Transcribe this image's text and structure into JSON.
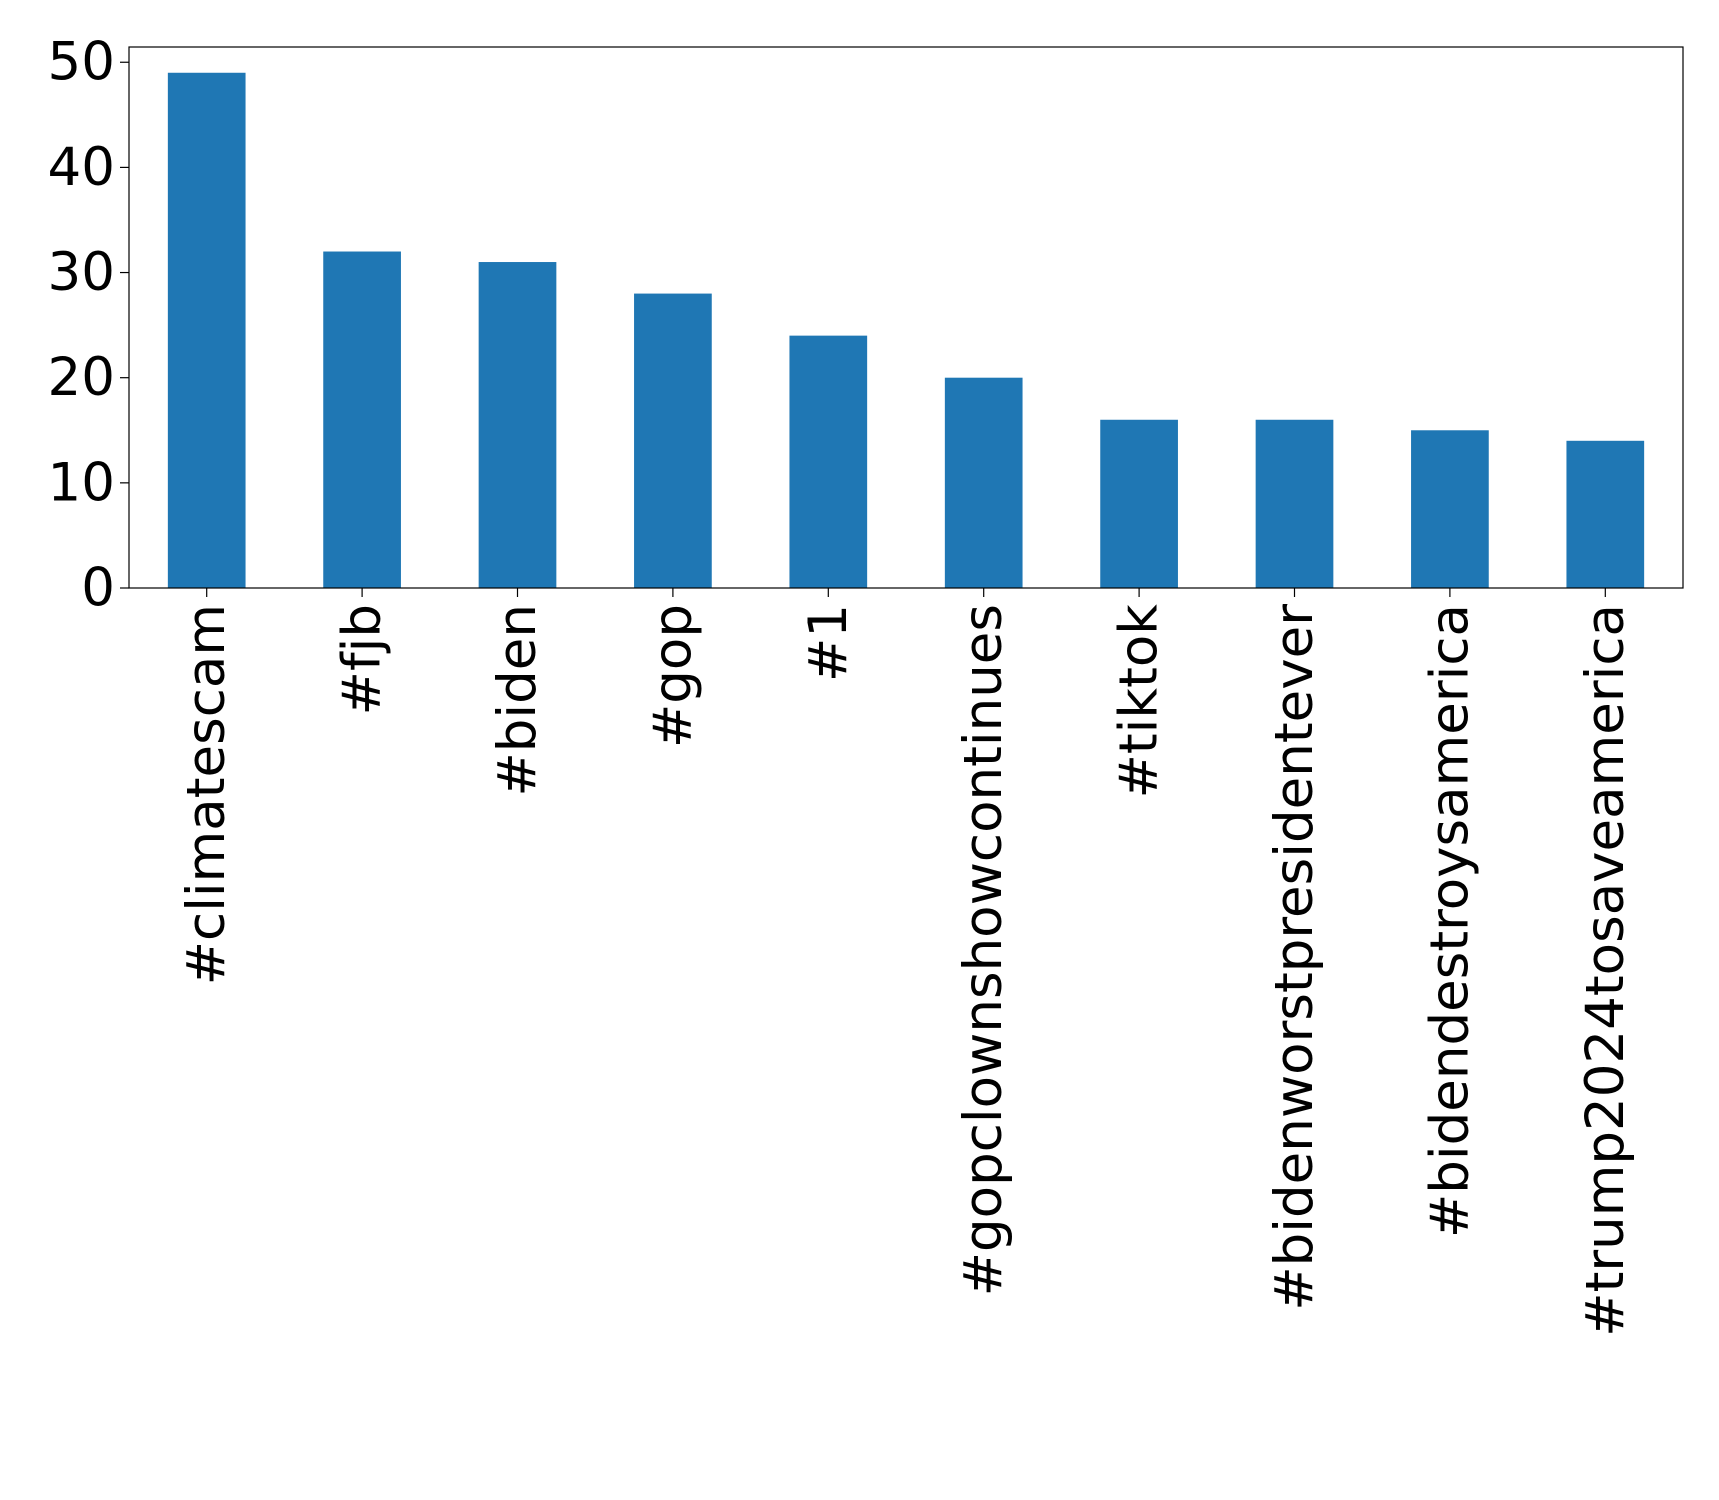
{
  "chart_data": {
    "type": "bar",
    "categories": [
      "#climatescam",
      "#fjb",
      "#biden",
      "#gop",
      "#1",
      "#gopclownshowcontinues",
      "#tiktok",
      "#bidenworstpresidentever",
      "#bidendestroysamerica",
      "#trump2024tosaveamerica"
    ],
    "values": [
      49,
      32,
      31,
      28,
      24,
      20,
      16,
      16,
      15,
      14
    ],
    "ylim": [
      0,
      51.45
    ],
    "yticks": [
      0,
      10,
      20,
      30,
      40,
      50
    ],
    "grid": false,
    "legend": "none",
    "bar_color": "#1f77b4"
  }
}
